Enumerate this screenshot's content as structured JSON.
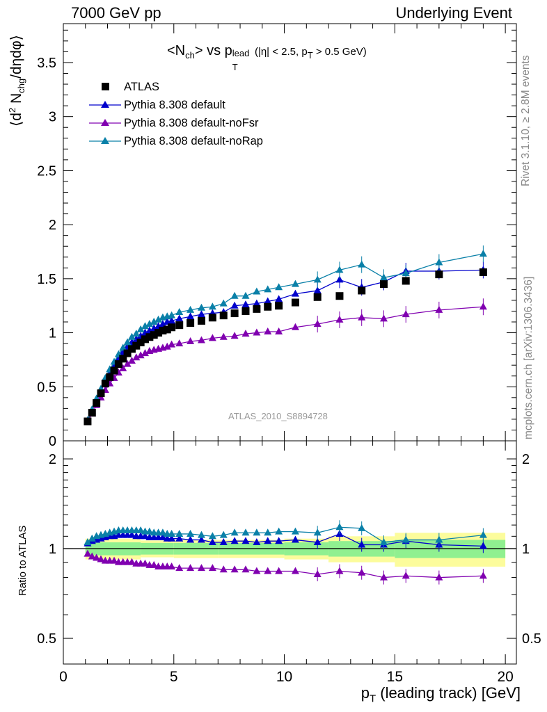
{
  "header": {
    "left": "7000 GeV pp",
    "right": "Underlying Event"
  },
  "side_labels": {
    "rivet": "Rivet 3.1.10, ≥ 2.8M events",
    "mcplots": "mcplots.cern.ch [arXiv:1306.3436]"
  },
  "watermark": "ATLAS_2010_S8894728",
  "title": {
    "main": "<N",
    "sub1": "ch",
    "mid": "> vs p",
    "sup": "lead",
    "sub2": "T",
    "cut1": " (|η| < 2.5, p",
    "cut_sub": "T",
    "cut2": " > 0.5 GeV)"
  },
  "ylabel_main": "⟨d² N_chg/dηdφ⟩",
  "ylabel_ratio": "Ratio to ATLAS",
  "xlabel": {
    "main": "p",
    "sub": "T",
    "rest": " (leading track) [GeV]"
  },
  "colors": {
    "atlas": "#000000",
    "default": "#0000cc",
    "noFsr": "#8000b0",
    "noRap": "#0a80a8",
    "band_inner": "#90f090",
    "band_outer": "#fcfc9c"
  },
  "chart_data": [
    {
      "type": "scatter",
      "name": "main",
      "xlim": [
        0,
        20.5
      ],
      "ylim": [
        0,
        3.86
      ],
      "yticks": [
        "0",
        "0.5",
        "1",
        "1.5",
        "2",
        "2.5",
        "3",
        "3.5"
      ],
      "x": [
        1.1,
        1.3,
        1.5,
        1.7,
        1.9,
        2.1,
        2.3,
        2.5,
        2.7,
        2.9,
        3.1,
        3.3,
        3.5,
        3.7,
        3.9,
        4.1,
        4.3,
        4.5,
        4.7,
        4.9,
        5.25,
        5.75,
        6.25,
        6.75,
        7.25,
        7.75,
        8.25,
        8.75,
        9.25,
        9.75,
        10.5,
        11.5,
        12.5,
        13.5,
        14.5,
        15.5,
        17.0,
        19.0
      ],
      "series": [
        {
          "name": "ATLAS",
          "marker": "square",
          "values": [
            0.18,
            0.26,
            0.35,
            0.44,
            0.53,
            0.59,
            0.65,
            0.71,
            0.76,
            0.81,
            0.85,
            0.88,
            0.91,
            0.94,
            0.96,
            0.98,
            1.0,
            1.02,
            1.03,
            1.05,
            1.07,
            1.09,
            1.11,
            1.14,
            1.16,
            1.18,
            1.2,
            1.22,
            1.24,
            1.25,
            1.28,
            1.33,
            1.34,
            1.39,
            1.45,
            1.48,
            1.54,
            1.56
          ]
        },
        {
          "name": "Pythia 8.308 default",
          "marker": "triangle",
          "values": [
            0.19,
            0.28,
            0.37,
            0.46,
            0.55,
            0.63,
            0.7,
            0.76,
            0.82,
            0.87,
            0.91,
            0.94,
            0.97,
            1.0,
            1.02,
            1.04,
            1.06,
            1.08,
            1.1,
            1.11,
            1.13,
            1.15,
            1.17,
            1.18,
            1.19,
            1.25,
            1.26,
            1.27,
            1.29,
            1.31,
            1.36,
            1.39,
            1.49,
            1.42,
            1.47,
            1.57,
            1.57,
            1.58
          ]
        },
        {
          "name": "Pythia 8.308 default-noFsr",
          "marker": "triangle",
          "values": [
            0.18,
            0.25,
            0.33,
            0.4,
            0.47,
            0.53,
            0.58,
            0.63,
            0.67,
            0.71,
            0.74,
            0.77,
            0.79,
            0.81,
            0.83,
            0.84,
            0.85,
            0.86,
            0.87,
            0.89,
            0.9,
            0.92,
            0.93,
            0.95,
            0.96,
            0.97,
            0.99,
            1.0,
            1.01,
            1.01,
            1.05,
            1.08,
            1.12,
            1.14,
            1.13,
            1.17,
            1.21,
            1.24
          ]
        },
        {
          "name": "Pythia 8.308 default-noRap",
          "marker": "triangle",
          "values": [
            0.19,
            0.29,
            0.39,
            0.48,
            0.58,
            0.66,
            0.73,
            0.8,
            0.86,
            0.91,
            0.96,
            0.99,
            1.03,
            1.06,
            1.08,
            1.1,
            1.12,
            1.14,
            1.15,
            1.16,
            1.19,
            1.21,
            1.23,
            1.24,
            1.27,
            1.34,
            1.34,
            1.38,
            1.4,
            1.42,
            1.45,
            1.49,
            1.58,
            1.63,
            1.51,
            1.55,
            1.65,
            1.73
          ]
        }
      ]
    },
    {
      "type": "scatter",
      "name": "ratio",
      "xlim": [
        0,
        20.5
      ],
      "ylim": [
        0.41,
        2.3
      ],
      "yticks": [
        "0.5",
        "1",
        "2"
      ],
      "xticks": [
        "0",
        "5",
        "10",
        "15",
        "20"
      ],
      "x": [
        1.1,
        1.3,
        1.5,
        1.7,
        1.9,
        2.1,
        2.3,
        2.5,
        2.7,
        2.9,
        3.1,
        3.3,
        3.5,
        3.7,
        3.9,
        4.1,
        4.3,
        4.5,
        4.7,
        4.9,
        5.25,
        5.75,
        6.25,
        6.75,
        7.25,
        7.75,
        8.25,
        8.75,
        9.25,
        9.75,
        10.5,
        11.5,
        12.5,
        13.5,
        14.5,
        15.5,
        17.0,
        19.0
      ],
      "series": [
        {
          "name": "Pythia 8.308 default",
          "values": [
            1.04,
            1.06,
            1.07,
            1.08,
            1.09,
            1.1,
            1.1,
            1.11,
            1.11,
            1.11,
            1.11,
            1.1,
            1.1,
            1.1,
            1.09,
            1.09,
            1.09,
            1.09,
            1.08,
            1.08,
            1.08,
            1.07,
            1.07,
            1.05,
            1.05,
            1.06,
            1.06,
            1.05,
            1.06,
            1.06,
            1.07,
            1.05,
            1.12,
            1.03,
            1.03,
            1.06,
            1.03,
            1.02
          ]
        },
        {
          "name": "Pythia 8.308 default-noFsr",
          "values": [
            0.96,
            0.94,
            0.93,
            0.92,
            0.91,
            0.91,
            0.91,
            0.9,
            0.9,
            0.9,
            0.9,
            0.89,
            0.89,
            0.89,
            0.88,
            0.88,
            0.87,
            0.87,
            0.87,
            0.87,
            0.86,
            0.86,
            0.86,
            0.86,
            0.85,
            0.85,
            0.85,
            0.84,
            0.84,
            0.84,
            0.84,
            0.82,
            0.84,
            0.83,
            0.8,
            0.81,
            0.8,
            0.81
          ]
        },
        {
          "name": "Pythia 8.308 default-noRap",
          "values": [
            1.05,
            1.08,
            1.1,
            1.11,
            1.12,
            1.13,
            1.14,
            1.15,
            1.15,
            1.15,
            1.15,
            1.15,
            1.15,
            1.14,
            1.14,
            1.13,
            1.13,
            1.13,
            1.12,
            1.12,
            1.12,
            1.12,
            1.11,
            1.1,
            1.11,
            1.13,
            1.13,
            1.13,
            1.13,
            1.14,
            1.14,
            1.13,
            1.18,
            1.17,
            1.05,
            1.07,
            1.07,
            1.11
          ]
        }
      ],
      "band_edges": [
        1.0,
        3.5,
        5.0,
        7.0,
        10.0,
        12.0,
        15.0,
        20.0
      ],
      "band_inner": [
        0.05,
        0.045,
        0.045,
        0.045,
        0.05,
        0.06,
        0.07
      ],
      "band_outer": [
        0.08,
        0.065,
        0.07,
        0.07,
        0.08,
        0.1,
        0.13
      ]
    }
  ]
}
